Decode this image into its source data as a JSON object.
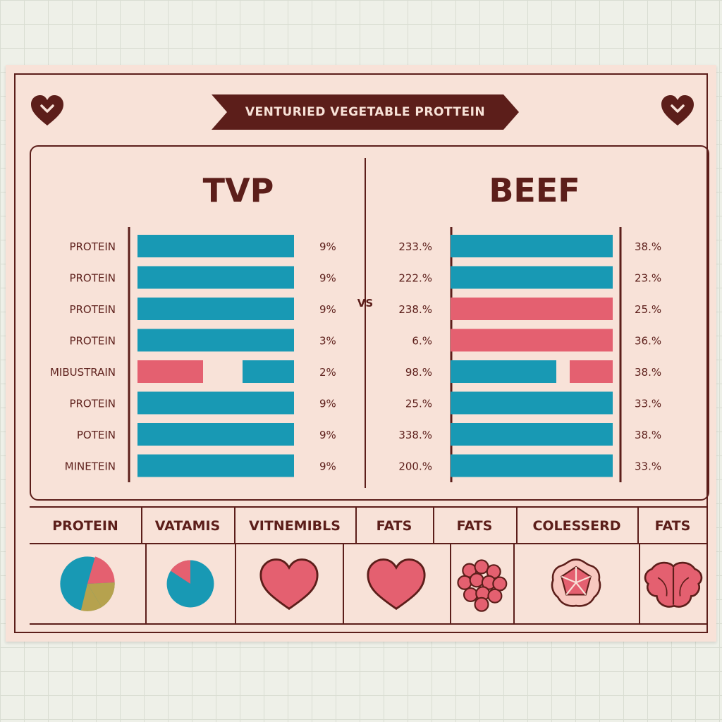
{
  "banner": {
    "title": "VENTURIED VEGETABLE PROTTEIN"
  },
  "panels": {
    "left_title": "TVP",
    "right_title": "BEEF",
    "vs_label": "VS"
  },
  "colors": {
    "teal": "#1899b4",
    "pink": "#e46070",
    "maroon": "#5c1e1a",
    "olive": "#b6a24e",
    "card": "#f8e2d8"
  },
  "chart_data": [
    {
      "type": "bar",
      "title": "TVP",
      "categories": [
        "PROTEIN",
        "PROTEIN",
        "PROTEIN",
        "PROTEIN",
        "MIBUSTRAIN",
        "PROTEIN",
        "POTEIN",
        "MINETEIN"
      ],
      "value_labels": [
        "9%",
        "9%",
        "9%",
        "3%",
        "2%",
        "9%",
        "9%",
        "9%"
      ],
      "bar_colors": [
        "teal",
        "teal",
        "teal",
        "teal",
        "pink+teal",
        "teal",
        "teal",
        "teal"
      ]
    },
    {
      "type": "bar",
      "title": "BEEF",
      "left_labels": [
        "233.%",
        "222.%",
        "238.%",
        "6.%",
        "98.%",
        "25.%",
        "338.%",
        "200.%"
      ],
      "value_labels": [
        "38.%",
        "23.%",
        "25.%",
        "36.%",
        "38.%",
        "33.%",
        "38.%",
        "33.%"
      ],
      "bar_colors": [
        "teal",
        "teal",
        "pink",
        "pink",
        "teal+pink",
        "teal",
        "teal",
        "teal"
      ]
    }
  ],
  "nutrient_table": {
    "headers": [
      "PROTEIN",
      "VATAMIS",
      "VITNEMIBLS",
      "FATS",
      "FATS",
      "COLESSERD",
      "FATS"
    ],
    "icons": [
      "pie-chart-icon",
      "pie-chart-icon",
      "heart-icon",
      "heart-icon",
      "cell-cluster-icon",
      "meat-cut-icon",
      "beef-cut-icon"
    ]
  }
}
